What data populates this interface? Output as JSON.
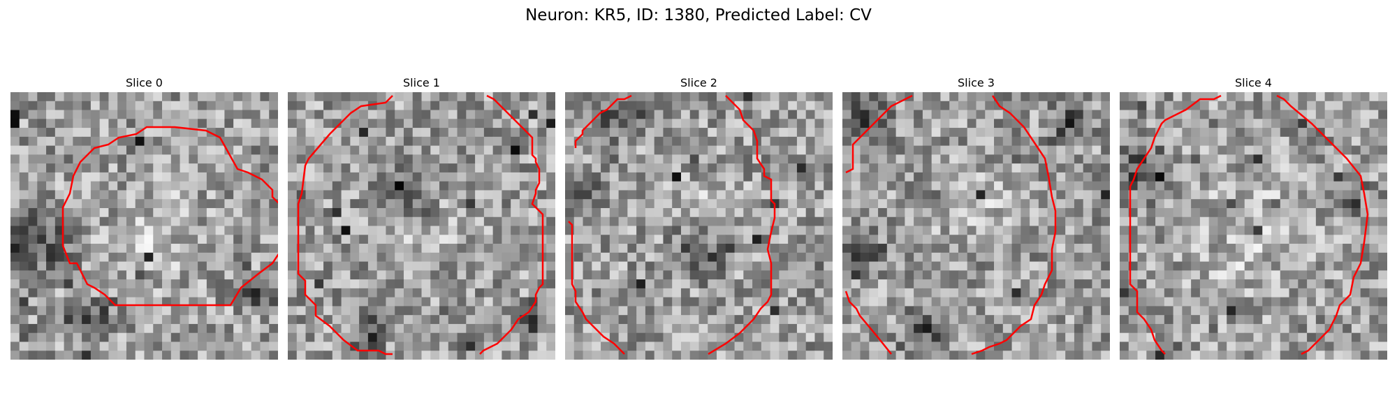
{
  "figure": {
    "title": "Neuron: KR5, ID: 1380, Predicted Label: CV",
    "contour_color": "#ff0000"
  },
  "panels": [
    {
      "title": "Slice 0",
      "seed": 11,
      "dark_regions": [
        [
          0.12,
          0.55,
          0.18
        ],
        [
          0.28,
          0.85,
          0.12
        ],
        [
          0.93,
          0.75,
          0.1
        ]
      ],
      "bright": [
        0.55,
        0.55,
        0.3
      ]
    },
    {
      "title": "Slice 1",
      "seed": 23,
      "dark_regions": [
        [
          0.45,
          0.4,
          0.15
        ],
        [
          0.3,
          0.9,
          0.1
        ],
        [
          0.9,
          0.85,
          0.1
        ]
      ],
      "bright": [
        0.5,
        0.5,
        0.2
      ]
    },
    {
      "title": "Slice 2",
      "seed": 37,
      "dark_regions": [
        [
          0.05,
          0.35,
          0.1
        ],
        [
          0.5,
          0.6,
          0.15
        ],
        [
          0.2,
          0.1,
          0.12
        ]
      ],
      "bright": [
        0.55,
        0.45,
        0.2
      ]
    },
    {
      "title": "Slice 3",
      "seed": 53,
      "dark_regions": [
        [
          0.1,
          0.1,
          0.15
        ],
        [
          0.3,
          0.9,
          0.12
        ],
        [
          0.85,
          0.12,
          0.12
        ],
        [
          0.08,
          0.6,
          0.1
        ]
      ],
      "bright": [
        0.5,
        0.45,
        0.2
      ]
    },
    {
      "title": "Slice 4",
      "seed": 71,
      "dark_regions": [
        [
          0.08,
          0.3,
          0.15
        ],
        [
          0.85,
          0.4,
          0.1
        ]
      ],
      "bright": [
        0.5,
        0.55,
        0.4
      ]
    }
  ]
}
